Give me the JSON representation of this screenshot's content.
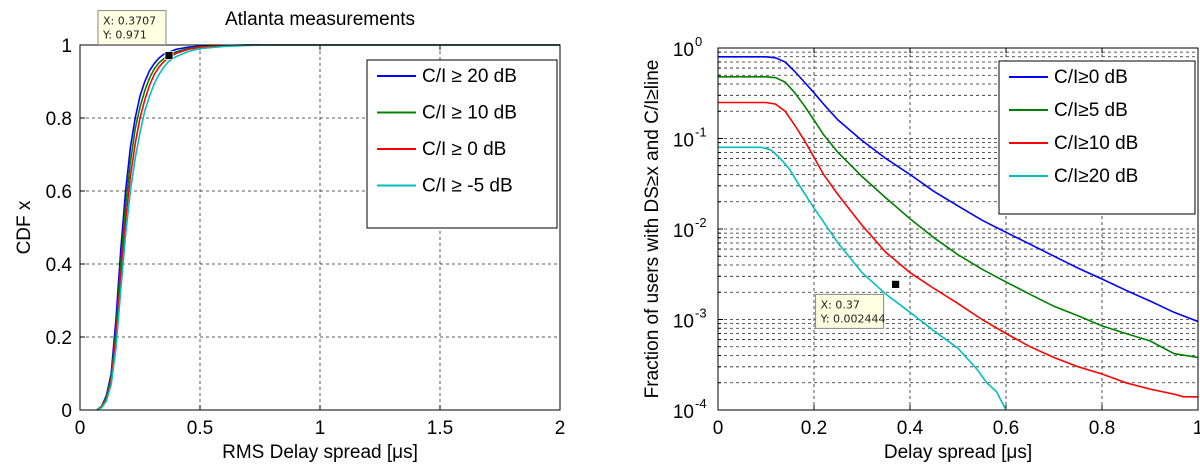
{
  "chart_data": [
    {
      "type": "line",
      "title": "Atlanta measurements",
      "xlabel": "RMS Delay spread [μs]",
      "ylabel": "CDF x",
      "xlim": [
        0,
        2
      ],
      "ylim": [
        0,
        1
      ],
      "xticks": [
        "0",
        "0.5",
        "1",
        "1.5",
        "2"
      ],
      "yticks": [
        "0",
        "0.2",
        "0.4",
        "0.6",
        "0.8",
        "1"
      ],
      "grid": true,
      "legend_position": "top-right",
      "series": [
        {
          "name": "C/I ≥ 20 dB",
          "color": "#0000ff",
          "x": [
            0.07,
            0.09,
            0.11,
            0.13,
            0.15,
            0.17,
            0.19,
            0.21,
            0.23,
            0.25,
            0.27,
            0.29,
            0.31,
            0.33,
            0.35,
            0.37,
            0.4,
            0.45,
            0.5,
            0.6,
            0.7,
            2.0
          ],
          "y": [
            0,
            0.01,
            0.04,
            0.1,
            0.25,
            0.44,
            0.6,
            0.72,
            0.8,
            0.86,
            0.9,
            0.93,
            0.95,
            0.965,
            0.975,
            0.98,
            0.988,
            0.994,
            0.997,
            0.999,
            1,
            1
          ]
        },
        {
          "name": "C/I ≥ 10 dB",
          "color": "#008000",
          "x": [
            0.07,
            0.09,
            0.11,
            0.13,
            0.15,
            0.17,
            0.19,
            0.21,
            0.23,
            0.25,
            0.27,
            0.29,
            0.31,
            0.33,
            0.35,
            0.37,
            0.4,
            0.45,
            0.5,
            0.6,
            0.7,
            2.0
          ],
          "y": [
            0,
            0.01,
            0.035,
            0.09,
            0.22,
            0.4,
            0.56,
            0.68,
            0.77,
            0.83,
            0.875,
            0.91,
            0.935,
            0.952,
            0.963,
            0.971,
            0.981,
            0.99,
            0.995,
            0.998,
            1,
            1
          ]
        },
        {
          "name": "C/I ≥ 0 dB",
          "color": "#ff0000",
          "x": [
            0.07,
            0.09,
            0.11,
            0.13,
            0.15,
            0.17,
            0.19,
            0.21,
            0.23,
            0.25,
            0.27,
            0.29,
            0.31,
            0.33,
            0.35,
            0.37,
            0.4,
            0.45,
            0.5,
            0.6,
            0.7,
            2.0
          ],
          "y": [
            0,
            0.008,
            0.03,
            0.08,
            0.2,
            0.37,
            0.52,
            0.64,
            0.73,
            0.8,
            0.85,
            0.89,
            0.92,
            0.94,
            0.955,
            0.965,
            0.977,
            0.988,
            0.994,
            0.998,
            1,
            1
          ]
        },
        {
          "name": "C/I ≥ -5 dB",
          "color": "#00bfbf",
          "x": [
            0.07,
            0.09,
            0.11,
            0.13,
            0.15,
            0.17,
            0.19,
            0.21,
            0.23,
            0.25,
            0.27,
            0.29,
            0.31,
            0.33,
            0.35,
            0.37,
            0.4,
            0.45,
            0.5,
            0.6,
            0.7,
            0.8,
            2.0
          ],
          "y": [
            0,
            0.006,
            0.025,
            0.07,
            0.17,
            0.33,
            0.48,
            0.6,
            0.69,
            0.76,
            0.82,
            0.86,
            0.895,
            0.92,
            0.94,
            0.955,
            0.968,
            0.982,
            0.99,
            0.996,
            0.999,
            1,
            1
          ]
        }
      ],
      "datatip": {
        "x": 0.3707,
        "y": 0.971,
        "label_x": "X: 0.3707",
        "label_y": "Y: 0.971"
      }
    },
    {
      "type": "line",
      "xlabel": "Delay spread [μs]",
      "ylabel": "Fraction of users with DS≥x and C/I≥line",
      "xlim": [
        0,
        1
      ],
      "ylim": [
        0.0001,
        1
      ],
      "yscale": "log",
      "xticks": [
        "0",
        "0.2",
        "0.4",
        "0.6",
        "0.8",
        "1"
      ],
      "yticks": [
        {
          "base": "10",
          "exp": "-4"
        },
        {
          "base": "10",
          "exp": "-3"
        },
        {
          "base": "10",
          "exp": "-2"
        },
        {
          "base": "10",
          "exp": "-1"
        },
        {
          "base": "10",
          "exp": "0"
        }
      ],
      "grid": true,
      "legend_position": "top-right",
      "series": [
        {
          "name": "C/I≥0 dB",
          "color": "#0000ff",
          "x": [
            0,
            0.05,
            0.1,
            0.12,
            0.14,
            0.16,
            0.18,
            0.2,
            0.22,
            0.25,
            0.3,
            0.35,
            0.4,
            0.45,
            0.5,
            0.55,
            0.6,
            0.65,
            0.7,
            0.75,
            0.8,
            0.85,
            0.9,
            0.95,
            1.0
          ],
          "y": [
            0.8,
            0.8,
            0.8,
            0.78,
            0.7,
            0.55,
            0.42,
            0.32,
            0.24,
            0.16,
            0.095,
            0.06,
            0.04,
            0.026,
            0.018,
            0.0125,
            0.0092,
            0.0068,
            0.005,
            0.0037,
            0.0028,
            0.0021,
            0.0016,
            0.0012,
            0.00095
          ]
        },
        {
          "name": "C/I≥5 dB",
          "color": "#008000",
          "x": [
            0,
            0.05,
            0.1,
            0.12,
            0.14,
            0.16,
            0.18,
            0.2,
            0.22,
            0.25,
            0.3,
            0.35,
            0.4,
            0.45,
            0.5,
            0.55,
            0.6,
            0.65,
            0.7,
            0.75,
            0.8,
            0.85,
            0.9,
            0.95,
            1.0
          ],
          "y": [
            0.48,
            0.48,
            0.48,
            0.47,
            0.42,
            0.32,
            0.23,
            0.16,
            0.11,
            0.07,
            0.038,
            0.022,
            0.013,
            0.008,
            0.0052,
            0.0036,
            0.0026,
            0.0019,
            0.0014,
            0.0011,
            0.00085,
            0.0007,
            0.00058,
            0.00042,
            0.00038
          ]
        },
        {
          "name": "C/I≥10 dB",
          "color": "#ff0000",
          "x": [
            0,
            0.05,
            0.1,
            0.12,
            0.14,
            0.16,
            0.18,
            0.2,
            0.22,
            0.25,
            0.3,
            0.35,
            0.4,
            0.45,
            0.5,
            0.55,
            0.6,
            0.65,
            0.7,
            0.75,
            0.8,
            0.85,
            0.9,
            0.95,
            0.97,
            1.0
          ],
          "y": [
            0.25,
            0.25,
            0.25,
            0.24,
            0.2,
            0.14,
            0.095,
            0.062,
            0.04,
            0.024,
            0.011,
            0.0055,
            0.0033,
            0.0022,
            0.0015,
            0.001,
            0.0007,
            0.0005,
            0.00038,
            0.0003,
            0.00025,
            0.0002,
            0.00017,
            0.00015,
            0.00014,
            0.00014
          ]
        },
        {
          "name": "C/I≥20 dB",
          "color": "#00bfbf",
          "x": [
            0,
            0.05,
            0.09,
            0.11,
            0.13,
            0.15,
            0.17,
            0.2,
            0.25,
            0.3,
            0.35,
            0.4,
            0.45,
            0.5,
            0.54,
            0.56,
            0.58,
            0.6
          ],
          "y": [
            0.08,
            0.08,
            0.08,
            0.075,
            0.06,
            0.045,
            0.03,
            0.017,
            0.007,
            0.0033,
            0.0019,
            0.0012,
            0.00075,
            0.00048,
            0.00028,
            0.0002,
            0.00016,
            0.0001
          ]
        }
      ],
      "datatip": {
        "x": 0.37,
        "y": 0.002444,
        "label_x": "X: 0.37",
        "label_y": "Y: 0.002444"
      }
    }
  ]
}
